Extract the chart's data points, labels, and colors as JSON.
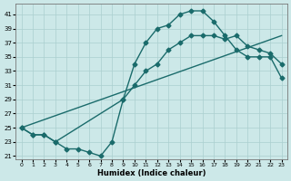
{
  "xlabel": "Humidex (Indice chaleur)",
  "bg_color": "#cce8e8",
  "line_color": "#1a6b6b",
  "xlim": [
    -0.5,
    23.5
  ],
  "ylim": [
    20.5,
    42.5
  ],
  "yticks": [
    21,
    23,
    25,
    27,
    29,
    31,
    33,
    35,
    37,
    39,
    41
  ],
  "xticks": [
    0,
    1,
    2,
    3,
    4,
    5,
    6,
    7,
    8,
    9,
    10,
    11,
    12,
    13,
    14,
    15,
    16,
    17,
    18,
    19,
    20,
    21,
    22,
    23
  ],
  "curve1_x": [
    0,
    1,
    2,
    3,
    4,
    5,
    6,
    7,
    8,
    9,
    10,
    11,
    12,
    13,
    14,
    15,
    16,
    17,
    18,
    19,
    20,
    21,
    22,
    23
  ],
  "curve1_y": [
    25,
    24,
    24,
    23,
    22,
    22,
    21.5,
    21,
    23,
    29,
    34,
    37,
    39,
    39.5,
    41,
    41.5,
    41.5,
    40,
    38,
    36,
    35,
    35,
    35,
    32
  ],
  "curve2_x": [
    0,
    23
  ],
  "curve2_y": [
    25,
    38
  ],
  "curve3_x": [
    0,
    1,
    2,
    3,
    9,
    10,
    11,
    12,
    13,
    14,
    15,
    16,
    17,
    18,
    19,
    20,
    21,
    22,
    23
  ],
  "curve3_y": [
    25,
    24,
    24,
    23,
    29,
    31,
    33,
    34,
    36,
    37,
    38,
    38,
    38,
    37.5,
    38,
    36.5,
    36,
    35.5,
    34
  ],
  "grid_color": "#aacfcf",
  "marker": "D",
  "markersize": 2.5,
  "linewidth": 1.0
}
